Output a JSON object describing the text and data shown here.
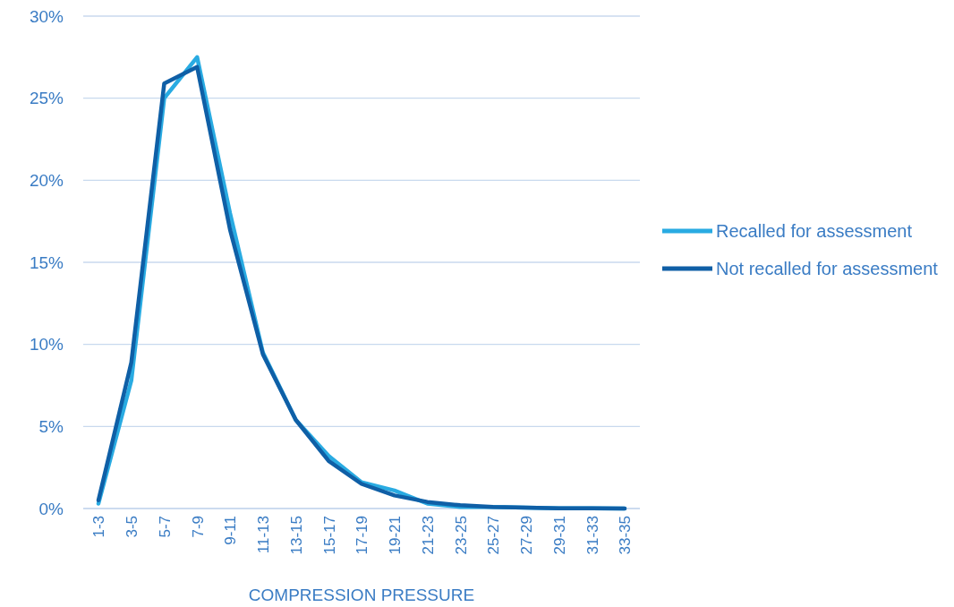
{
  "chart_data": {
    "type": "line",
    "xlabel": "COMPRESSION PRESSURE",
    "categories": [
      "1-3",
      "3-5",
      "5-7",
      "7-9",
      "9-11",
      "11-13",
      "13-15",
      "15-17",
      "17-19",
      "19-21",
      "21-23",
      "23-25",
      "25-27",
      "27-29",
      "29-31",
      "31-33",
      "33-35"
    ],
    "series": [
      {
        "name": "Recalled for assessment",
        "color": "#29abe2",
        "values": [
          0.3,
          7.8,
          25.0,
          27.5,
          18.0,
          9.5,
          5.4,
          3.2,
          1.6,
          1.1,
          0.3,
          0.1,
          0.1,
          0.05,
          0.02,
          0.02,
          0.0
        ]
      },
      {
        "name": "Not recalled for assessment",
        "color": "#0f5fa6",
        "values": [
          0.5,
          8.9,
          25.9,
          26.9,
          17.0,
          9.4,
          5.4,
          2.9,
          1.5,
          0.8,
          0.4,
          0.2,
          0.1,
          0.05,
          0.02,
          0.02,
          0.0
        ]
      }
    ],
    "ylim": [
      0,
      30
    ],
    "yticks": [
      {
        "value": 0,
        "label": "0%"
      },
      {
        "value": 5,
        "label": "5%"
      },
      {
        "value": 10,
        "label": "10%"
      },
      {
        "value": 15,
        "label": "15%"
      },
      {
        "value": 20,
        "label": "20%"
      },
      {
        "value": 25,
        "label": "25%"
      },
      {
        "value": 30,
        "label": "30%"
      }
    ],
    "grid": "y",
    "legend": "right",
    "marker": "none",
    "line_style": "solid"
  }
}
